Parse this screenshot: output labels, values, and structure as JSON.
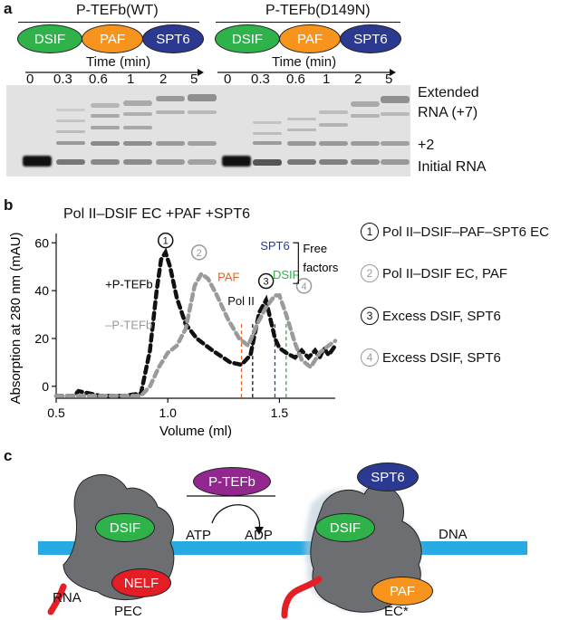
{
  "panel_a": {
    "label": "a",
    "group_labels": [
      "P-TEFb(WT)",
      "P-TEFb(D149N)"
    ],
    "factor_labels": [
      "DSIF",
      "PAF",
      "SPT6"
    ],
    "factor_colors": {
      "DSIF": "#2fb24a",
      "PAF": "#f7941d",
      "SPT6": "#2b3990"
    },
    "time_label": "Time (min)",
    "timepoints": [
      "0",
      "0.3",
      "0.6",
      "1",
      "2",
      "5"
    ],
    "band_labels": [
      "Extended",
      "RNA  (+7)",
      "+2",
      "Initial RNA"
    ]
  },
  "panel_b": {
    "label": "b",
    "title": "Pol II–DSIF EC +PAF +SPT6",
    "legend_items": [
      {
        "num": "1",
        "text": "Pol II–DSIF–PAF–SPT6 EC"
      },
      {
        "num": "2",
        "text": "Pol II–DSIF EC, PAF"
      },
      {
        "num": "3",
        "text": "Excess DSIF, SPT6"
      },
      {
        "num": "4",
        "text": "Excess DSIF, SPT6"
      }
    ],
    "free_factors_label": [
      "Free",
      "factors"
    ],
    "marker_labels": [
      "PAF",
      "Pol II",
      "SPT6",
      "DSIF"
    ],
    "curve_labels": [
      "+P-TEFb",
      "–P-TEFb"
    ],
    "peak_numbers": [
      "1",
      "2",
      "3",
      "4"
    ]
  },
  "chart_data": {
    "type": "line",
    "title": "Pol II–DSIF EC +PAF +SPT6",
    "xlabel": "Volume (ml)",
    "ylabel": "Absorption at 280 nm (mAU)",
    "xlim": [
      0.5,
      1.75
    ],
    "ylim": [
      -5,
      62
    ],
    "xticks": [
      0.5,
      1.0,
      1.5
    ],
    "yticks": [
      0,
      20,
      40,
      60
    ],
    "markers": [
      {
        "label": "PAF",
        "x": 1.33,
        "color": "#e8611a"
      },
      {
        "label": "Pol II",
        "x": 1.38,
        "color": "#111111"
      },
      {
        "label": "SPT6",
        "x": 1.48,
        "color": "#2b3990"
      },
      {
        "label": "DSIF",
        "x": 1.53,
        "color": "#2fb24a"
      }
    ],
    "series": [
      {
        "name": "+P-TEFb",
        "color": "#111111",
        "x": [
          0.5,
          0.58,
          0.6,
          0.7,
          0.8,
          0.88,
          0.92,
          0.95,
          0.97,
          0.99,
          1.01,
          1.04,
          1.08,
          1.13,
          1.2,
          1.28,
          1.33,
          1.37,
          1.41,
          1.44,
          1.46,
          1.48,
          1.5,
          1.53,
          1.57,
          1.6,
          1.63,
          1.66,
          1.68,
          1.7,
          1.72,
          1.75
        ],
        "y": [
          -4,
          -4,
          -2,
          -4,
          -4,
          -3,
          15,
          40,
          53,
          56,
          50,
          37,
          26,
          20,
          15,
          10,
          9,
          13,
          31,
          36,
          28,
          20,
          16,
          14,
          12,
          15,
          12,
          15,
          12,
          16,
          13,
          17
        ]
      },
      {
        "name": "–P-TEFb",
        "color": "#9a9a9a",
        "x": [
          0.5,
          0.6,
          0.7,
          0.8,
          0.88,
          0.92,
          0.96,
          1.0,
          1.04,
          1.08,
          1.12,
          1.15,
          1.18,
          1.22,
          1.27,
          1.32,
          1.36,
          1.4,
          1.44,
          1.48,
          1.5,
          1.53,
          1.57,
          1.6,
          1.64,
          1.68,
          1.72,
          1.75
        ],
        "y": [
          -4,
          -4,
          -4,
          -4,
          -4,
          0,
          8,
          14,
          17,
          24,
          42,
          47,
          45,
          38,
          28,
          20,
          17,
          26,
          33,
          38,
          38,
          30,
          18,
          11,
          8,
          14,
          17,
          19
        ]
      }
    ]
  },
  "panel_c": {
    "label": "c",
    "left_factors": [
      "DSIF",
      "NELF"
    ],
    "left_labels": [
      "RNA",
      "PEC"
    ],
    "kinase_label": "P-TEFb",
    "reaction": [
      "ATP",
      "ADP"
    ],
    "right_factors": [
      "SPT6",
      "DSIF",
      "PAF"
    ],
    "right_labels": [
      "DNA",
      "EC*"
    ],
    "kinase_color": "#92278f",
    "nelf_color": "#e31e24",
    "dna_color": "#27aae1",
    "rnap_color": "#6d6e71"
  }
}
